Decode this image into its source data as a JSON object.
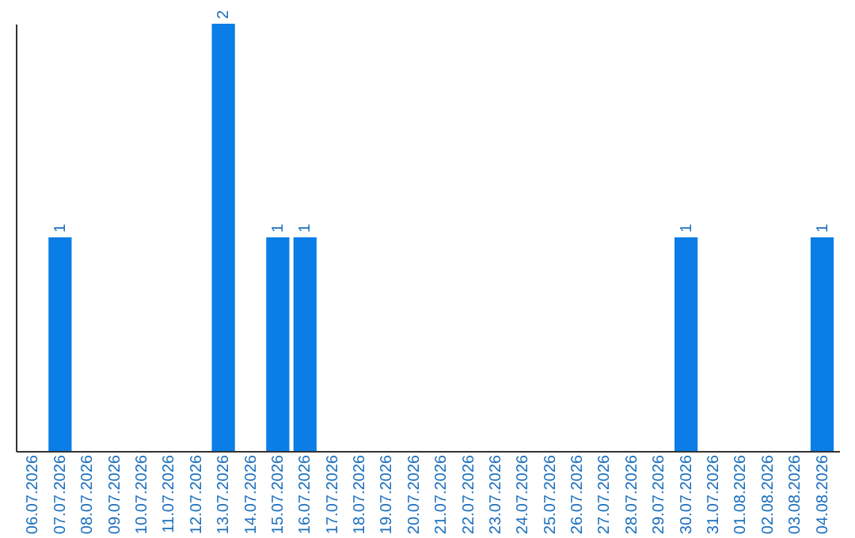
{
  "chart_data": {
    "type": "bar",
    "categories": [
      "06.07.2026",
      "07.07.2026",
      "08.07.2026",
      "09.07.2026",
      "10.07.2026",
      "11.07.2026",
      "12.07.2026",
      "13.07.2026",
      "14.07.2026",
      "15.07.2026",
      "16.07.2026",
      "17.07.2026",
      "18.07.2026",
      "19.07.2026",
      "20.07.2026",
      "21.07.2026",
      "22.07.2026",
      "23.07.2026",
      "24.07.2026",
      "25.07.2026",
      "26.07.2026",
      "27.07.2026",
      "28.07.2026",
      "29.07.2026",
      "30.07.2026",
      "31.07.2026",
      "01.08.2026",
      "02.08.2026",
      "03.08.2026",
      "04.08.2026"
    ],
    "values": [
      0,
      1,
      0,
      0,
      0,
      0,
      0,
      2,
      0,
      1,
      1,
      0,
      0,
      0,
      0,
      0,
      0,
      0,
      0,
      0,
      0,
      0,
      0,
      0,
      1,
      0,
      0,
      0,
      0,
      1
    ],
    "value_labels": [
      null,
      "1",
      null,
      null,
      null,
      null,
      null,
      "2",
      null,
      "1",
      "1",
      null,
      null,
      null,
      null,
      null,
      null,
      null,
      null,
      null,
      null,
      null,
      null,
      null,
      "1",
      null,
      null,
      null,
      null,
      "1"
    ],
    "color": "#0a7de6",
    "tick_labels": "x",
    "grid": false
  }
}
